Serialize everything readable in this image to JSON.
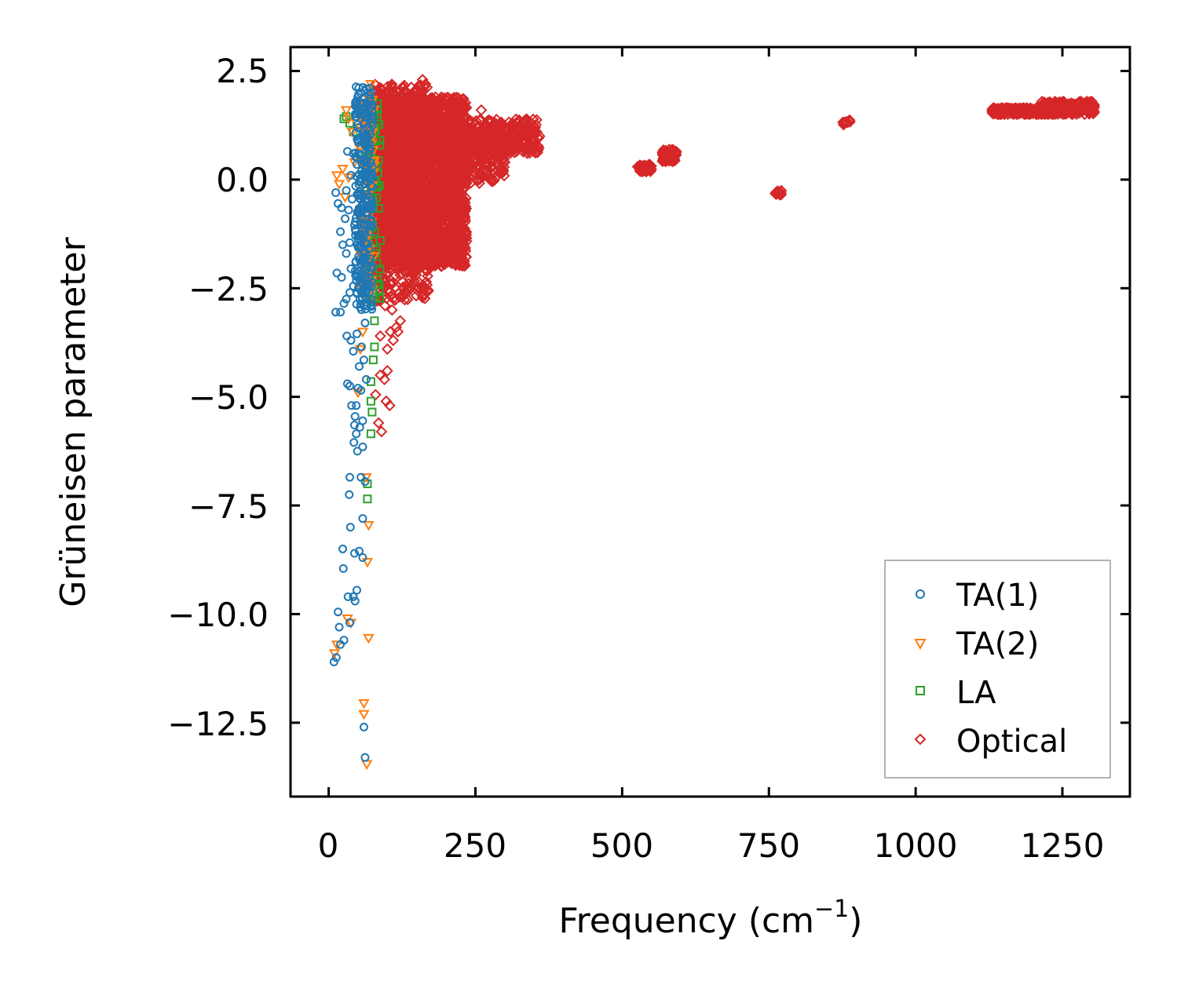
{
  "chart_data": {
    "type": "scatter",
    "title": "",
    "xlabel": "Frequency (cm",
    "xlabel_sup": "−1",
    "xlabel_close": ")",
    "ylabel": "Grüneisen parameter",
    "xlim": [
      -65,
      1365
    ],
    "ylim": [
      -14.2,
      3.05
    ],
    "xticks": [
      0,
      250,
      500,
      750,
      1000,
      1250
    ],
    "xtick_labels": [
      "0",
      "250",
      "500",
      "750",
      "1000",
      "1250"
    ],
    "yticks": [
      2.5,
      0.0,
      -2.5,
      -5.0,
      -7.5,
      -10.0,
      -12.5
    ],
    "ytick_labels": [
      "2.5",
      "0.0",
      "−2.5",
      "−5.0",
      "−7.5",
      "−10.0",
      "−12.5"
    ],
    "legend": {
      "position": "lower-right"
    },
    "series": [
      {
        "name": "TA(1)",
        "marker": "circle",
        "color": "#1f77b4",
        "points": [
          [
            9,
            -11.1
          ],
          [
            13,
            -11.0
          ],
          [
            20,
            -10.7
          ],
          [
            26,
            -10.6
          ],
          [
            18,
            -10.3
          ],
          [
            36,
            -10.2
          ],
          [
            16,
            -9.95
          ],
          [
            45,
            -9.7
          ],
          [
            42,
            -9.6
          ],
          [
            33,
            -9.6
          ],
          [
            48,
            -9.45
          ],
          [
            25,
            -8.95
          ],
          [
            44,
            -8.6
          ],
          [
            58,
            -8.7
          ],
          [
            24,
            -8.5
          ],
          [
            52,
            -8.55
          ],
          [
            58,
            -7.8
          ],
          [
            37,
            -8.0
          ],
          [
            35,
            -7.25
          ],
          [
            36,
            -6.85
          ],
          [
            55,
            -6.85
          ],
          [
            62,
            -6.95
          ],
          [
            43,
            -6.05
          ],
          [
            58,
            -6.15
          ],
          [
            49,
            -6.25
          ],
          [
            44,
            -5.65
          ],
          [
            53,
            -5.7
          ],
          [
            58,
            -5.55
          ],
          [
            47,
            -5.85
          ],
          [
            39,
            -5.2
          ],
          [
            47,
            -5.2
          ],
          [
            45,
            -5.45
          ],
          [
            50,
            -4.8
          ],
          [
            55,
            -4.85
          ],
          [
            64,
            -4.6
          ],
          [
            32,
            -4.7
          ],
          [
            36,
            -4.75
          ],
          [
            52,
            -4.3
          ],
          [
            60,
            -4.15
          ],
          [
            42,
            -3.95
          ],
          [
            31,
            -3.6
          ],
          [
            38,
            -3.7
          ],
          [
            48,
            -3.55
          ],
          [
            56,
            -3.85
          ],
          [
            62,
            -3.3
          ],
          [
            12,
            -3.05
          ],
          [
            20,
            -3.05
          ],
          [
            26,
            -2.85
          ],
          [
            30,
            -2.75
          ],
          [
            36,
            -2.6
          ],
          [
            48,
            -2.6
          ],
          [
            42,
            -2.45
          ],
          [
            54,
            -2.35
          ],
          [
            22,
            -2.25
          ],
          [
            14,
            -2.15
          ],
          [
            38,
            -2.05
          ],
          [
            60,
            -2.05
          ],
          [
            46,
            -1.9
          ],
          [
            30,
            -1.7
          ],
          [
            24,
            -1.5
          ],
          [
            36,
            -1.45
          ],
          [
            50,
            -1.3
          ],
          [
            58,
            -1.35
          ],
          [
            20,
            -1.2
          ],
          [
            44,
            -1.05
          ],
          [
            54,
            -0.85
          ],
          [
            28,
            -0.9
          ],
          [
            34,
            -0.7
          ],
          [
            22,
            -0.65
          ],
          [
            16,
            -0.55
          ],
          [
            40,
            -0.45
          ],
          [
            12,
            -0.3
          ],
          [
            30,
            -0.25
          ],
          [
            46,
            -0.15
          ],
          [
            52,
            -0.05
          ],
          [
            38,
            0.1
          ],
          [
            56,
            0.2
          ],
          [
            48,
            0.35
          ],
          [
            60,
            0.45
          ],
          [
            42,
            0.6
          ],
          [
            64,
            0.75
          ],
          [
            32,
            0.65
          ],
          [
            50,
            0.9
          ],
          [
            58,
            1.05
          ],
          [
            66,
            1.2
          ],
          [
            62,
            1.45
          ],
          [
            68,
            1.6
          ],
          [
            70,
            1.8
          ],
          [
            72,
            2.0
          ],
          [
            70,
            2.1
          ],
          [
            60,
            -12.6
          ],
          [
            62,
            -13.3
          ]
        ],
        "bands": [
          {
            "x": [
              45,
              75
            ],
            "y": [
              -3.0,
              2.2
            ],
            "count": 240
          }
        ]
      },
      {
        "name": "TA(2)",
        "marker": "triangle-down",
        "color": "#ff7f0e",
        "points": [
          [
            10,
            -10.9
          ],
          [
            14,
            -10.7
          ],
          [
            32,
            -10.1
          ],
          [
            38,
            -10.2
          ],
          [
            68,
            -10.55
          ],
          [
            60,
            -12.05
          ],
          [
            60,
            -12.3
          ],
          [
            65,
            -13.45
          ],
          [
            68,
            -7.95
          ],
          [
            66,
            -8.8
          ],
          [
            64,
            -6.85
          ],
          [
            50,
            -4.9
          ],
          [
            54,
            -3.9
          ],
          [
            58,
            -3.5
          ],
          [
            62,
            -2.75
          ],
          [
            60,
            -2.3
          ],
          [
            66,
            -1.6
          ],
          [
            56,
            -1.0
          ],
          [
            28,
            -0.4
          ],
          [
            18,
            -0.1
          ],
          [
            14,
            0.1
          ],
          [
            24,
            0.25
          ],
          [
            34,
            0.05
          ],
          [
            44,
            0.4
          ],
          [
            52,
            0.75
          ],
          [
            60,
            1.0
          ],
          [
            30,
            1.6
          ],
          [
            34,
            1.4
          ],
          [
            64,
            1.7
          ],
          [
            40,
            1.1
          ],
          [
            68,
            2.1
          ],
          [
            72,
            2.2
          ],
          [
            48,
            1.3
          ]
        ],
        "bands": [
          {
            "x": [
              55,
              78
            ],
            "y": [
              -2.6,
              2.0
            ],
            "count": 90
          }
        ]
      },
      {
        "name": "LA",
        "marker": "square",
        "color": "#2ca02c",
        "points": [
          [
            26,
            1.4
          ],
          [
            30,
            1.45
          ],
          [
            36,
            1.3
          ],
          [
            42,
            1.1
          ],
          [
            56,
            1.7
          ],
          [
            66,
            1.3
          ],
          [
            72,
            -5.85
          ],
          [
            74,
            -5.35
          ],
          [
            72,
            -5.1
          ],
          [
            66,
            -7.35
          ],
          [
            66,
            -7.0
          ],
          [
            76,
            -4.15
          ],
          [
            78,
            -3.85
          ],
          [
            78,
            -3.25
          ],
          [
            72,
            -4.65
          ],
          [
            80,
            -0.15
          ],
          [
            78,
            -1.2
          ],
          [
            76,
            -2.6
          ],
          [
            72,
            -2.8
          ],
          [
            80,
            -1.7
          ],
          [
            74,
            0.5
          ],
          [
            78,
            1.2
          ],
          [
            82,
            1.5
          ],
          [
            70,
            0.9
          ],
          [
            76,
            -0.5
          ]
        ],
        "bands": [
          {
            "x": [
              62,
              88
            ],
            "y": [
              -2.8,
              1.8
            ],
            "count": 70
          }
        ]
      },
      {
        "name": "Optical",
        "marker": "diamond",
        "color": "#d62728",
        "points": [
          [
            80,
            -4.95
          ],
          [
            85,
            -5.6
          ],
          [
            90,
            -5.8
          ],
          [
            98,
            -5.1
          ],
          [
            104,
            -5.2
          ],
          [
            88,
            -4.5
          ],
          [
            95,
            -4.6
          ],
          [
            100,
            -4.4
          ],
          [
            100,
            -3.9
          ],
          [
            110,
            -3.7
          ],
          [
            118,
            -3.5
          ],
          [
            105,
            -3.5
          ],
          [
            115,
            -3.4
          ],
          [
            122,
            -3.25
          ],
          [
            88,
            -3.6
          ],
          [
            108,
            -3.0
          ],
          [
            126,
            -2.7
          ],
          [
            134,
            -2.5
          ],
          [
            96,
            -2.9
          ],
          [
            144,
            -2.2
          ],
          [
            150,
            -1.9
          ],
          [
            165,
            -1.7
          ],
          [
            172,
            -1.5
          ],
          [
            180,
            -1.4
          ],
          [
            190,
            -1.2
          ],
          [
            200,
            -0.95
          ],
          [
            210,
            -0.6
          ],
          [
            230,
            0.3
          ],
          [
            250,
            0.7
          ],
          [
            300,
            0.4
          ],
          [
            320,
            0.65
          ],
          [
            340,
            1.0
          ],
          [
            350,
            0.9
          ],
          [
            345,
            1.1
          ],
          [
            160,
            2.3
          ],
          [
            165,
            2.2
          ],
          [
            130,
            2.05
          ],
          [
            140,
            1.9
          ],
          [
            220,
            1.8
          ],
          [
            260,
            1.6
          ],
          [
            530,
            0.28
          ],
          [
            538,
            0.22
          ],
          [
            546,
            0.25
          ],
          [
            572,
            0.5
          ],
          [
            580,
            0.58
          ],
          [
            585,
            0.65
          ],
          [
            576,
            0.45
          ],
          [
            762,
            -0.3
          ],
          [
            768,
            -0.28
          ],
          [
            878,
            1.3
          ],
          [
            884,
            1.32
          ]
        ],
        "bands": [
          {
            "x": [
              75,
              235
            ],
            "y": [
              -2.0,
              1.9
            ],
            "count": 2600
          },
          {
            "x": [
              75,
              170
            ],
            "y": [
              -2.8,
              2.2
            ],
            "count": 650
          },
          {
            "x": [
              230,
              360
            ],
            "y": [
              0.6,
              1.4
            ],
            "count": 320
          },
          {
            "x": [
              200,
              300
            ],
            "y": [
              -0.1,
              1.2
            ],
            "count": 260
          },
          {
            "x": [
              525,
              550
            ],
            "y": [
              0.18,
              0.35
            ],
            "count": 50
          },
          {
            "x": [
              568,
              592
            ],
            "y": [
              0.42,
              0.7
            ],
            "count": 55
          },
          {
            "x": [
              760,
              772
            ],
            "y": [
              -0.35,
              -0.25
            ],
            "count": 10
          },
          {
            "x": [
              876,
              888
            ],
            "y": [
              1.25,
              1.38
            ],
            "count": 10
          },
          {
            "x": [
              1130,
              1220
            ],
            "y": [
              1.5,
              1.65
            ],
            "count": 220
          },
          {
            "x": [
              1215,
              1305
            ],
            "y": [
              1.5,
              1.8
            ],
            "count": 230
          }
        ]
      }
    ]
  }
}
